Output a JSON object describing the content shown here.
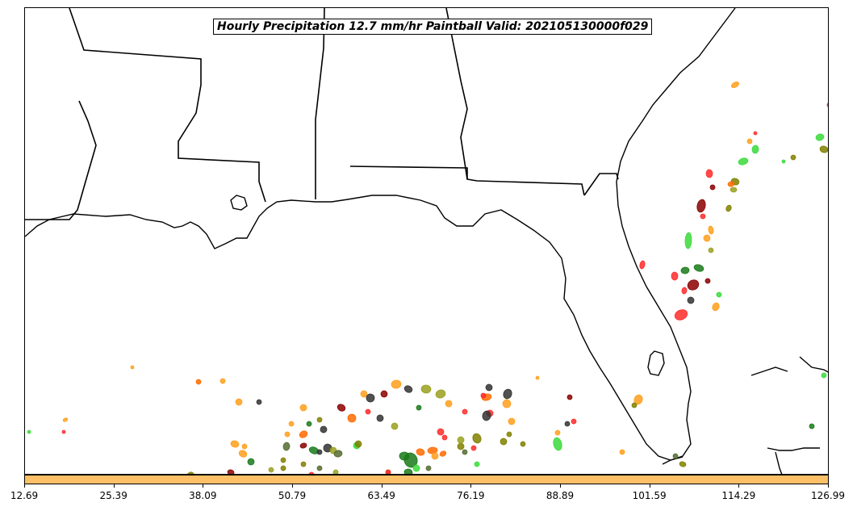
{
  "title": "Hourly Precipitation 12.7 mm/hr Paintball Valid: 202105130000f029",
  "colorbar": {
    "color": "#fdc066",
    "ticks": [
      "12.69",
      "25.39",
      "38.09",
      "50.79",
      "63.49",
      "76.19",
      "88.89",
      "101.59",
      "114.29",
      "126.99"
    ]
  },
  "colors": {
    "coastline": "#000000",
    "paintball_palette": [
      "#ff9f1c",
      "#ff6a00",
      "#1a7a1a",
      "#3adb3a",
      "#556b2f",
      "#808000",
      "#8b0000",
      "#ff2a2a",
      "#333333",
      "#9aa020"
    ]
  },
  "map": {
    "region": "US Gulf Coast / Florida",
    "features": [
      "coastline",
      "state-borders"
    ]
  }
}
